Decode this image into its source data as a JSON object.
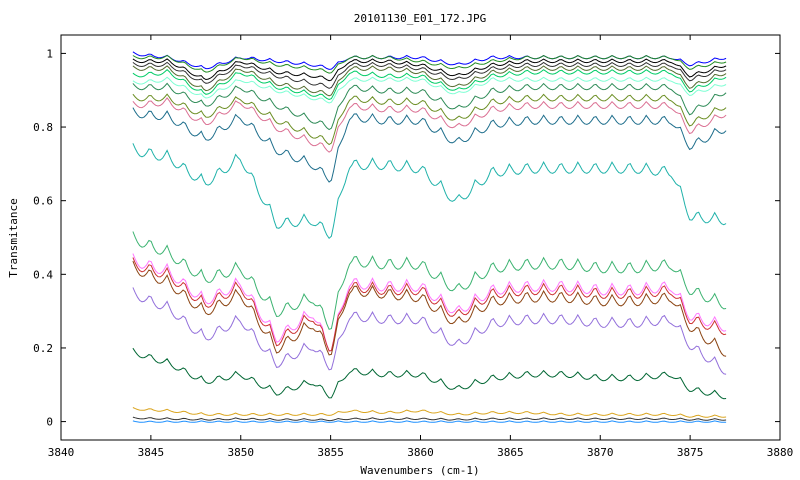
{
  "chart_data": {
    "type": "line",
    "title": "20101130_E01_172.JPG",
    "xlabel": "Wavenumbers (cm-1)",
    "ylabel": "Transmitance",
    "xlim": [
      3840,
      3880
    ],
    "ylim": [
      -0.05,
      1.05
    ],
    "x_ticks": [
      3840,
      3845,
      3850,
      3855,
      3860,
      3865,
      3870,
      3875,
      3880
    ],
    "y_ticks": [
      0,
      0.2,
      0.4,
      0.6,
      0.8,
      1
    ],
    "x_tick_labels": [
      "3840",
      "3845",
      "3850",
      "3855",
      "3860",
      "3865",
      "3870",
      "3875",
      "3880"
    ],
    "y_tick_labels": [
      "0",
      "0.2",
      "0.4",
      "0.6",
      "0.8",
      "1"
    ],
    "grid": false,
    "legend": "none",
    "x_range_data": [
      3844,
      3877
    ],
    "lines_at_x": [
      3844,
      3846,
      3848,
      3850,
      3852,
      3854,
      3855,
      3856,
      3858,
      3860,
      3862,
      3864,
      3866,
      3868,
      3870,
      3872,
      3874,
      3875,
      3877
    ],
    "series": [
      {
        "color": "#0000ff",
        "values": [
          1.0,
          0.99,
          0.96,
          0.99,
          0.98,
          0.97,
          0.96,
          0.99,
          0.99,
          0.99,
          0.97,
          0.99,
          0.99,
          0.99,
          0.99,
          0.99,
          0.99,
          0.97,
          0.99
        ]
      },
      {
        "color": "#228b22",
        "values": [
          0.99,
          0.99,
          0.95,
          0.99,
          0.97,
          0.96,
          0.95,
          0.99,
          0.99,
          0.98,
          0.96,
          0.98,
          0.99,
          0.99,
          0.99,
          0.99,
          0.99,
          0.96,
          0.98
        ]
      },
      {
        "color": "#000000",
        "values": [
          0.98,
          0.98,
          0.93,
          0.98,
          0.95,
          0.94,
          0.93,
          0.98,
          0.98,
          0.97,
          0.94,
          0.97,
          0.98,
          0.98,
          0.98,
          0.98,
          0.98,
          0.94,
          0.97
        ]
      },
      {
        "color": "#333333",
        "values": [
          0.97,
          0.97,
          0.92,
          0.97,
          0.94,
          0.92,
          0.91,
          0.97,
          0.97,
          0.96,
          0.93,
          0.96,
          0.97,
          0.97,
          0.97,
          0.97,
          0.97,
          0.93,
          0.96
        ]
      },
      {
        "color": "#556b2f",
        "values": [
          0.96,
          0.96,
          0.9,
          0.96,
          0.92,
          0.9,
          0.89,
          0.96,
          0.96,
          0.95,
          0.91,
          0.95,
          0.96,
          0.96,
          0.96,
          0.96,
          0.96,
          0.91,
          0.95
        ]
      },
      {
        "color": "#00cc66",
        "values": [
          0.94,
          0.95,
          0.89,
          0.95,
          0.91,
          0.89,
          0.88,
          0.95,
          0.94,
          0.94,
          0.9,
          0.94,
          0.95,
          0.95,
          0.95,
          0.95,
          0.95,
          0.9,
          0.94
        ]
      },
      {
        "color": "#7fffd4",
        "values": [
          0.92,
          0.93,
          0.88,
          0.93,
          0.9,
          0.88,
          0.87,
          0.93,
          0.93,
          0.93,
          0.89,
          0.93,
          0.93,
          0.93,
          0.93,
          0.93,
          0.93,
          0.89,
          0.92
        ]
      },
      {
        "color": "#2e8b57",
        "values": [
          0.91,
          0.91,
          0.86,
          0.91,
          0.86,
          0.82,
          0.8,
          0.91,
          0.9,
          0.9,
          0.85,
          0.9,
          0.91,
          0.91,
          0.91,
          0.91,
          0.91,
          0.84,
          0.9
        ]
      },
      {
        "color": "#6b8e23",
        "values": [
          0.88,
          0.88,
          0.83,
          0.88,
          0.82,
          0.78,
          0.76,
          0.88,
          0.87,
          0.87,
          0.82,
          0.87,
          0.88,
          0.88,
          0.88,
          0.88,
          0.88,
          0.81,
          0.86
        ]
      },
      {
        "color": "#db7093",
        "values": [
          0.86,
          0.87,
          0.81,
          0.87,
          0.8,
          0.76,
          0.74,
          0.86,
          0.85,
          0.85,
          0.8,
          0.85,
          0.86,
          0.86,
          0.86,
          0.86,
          0.86,
          0.79,
          0.84
        ]
      },
      {
        "color": "#1e6e8c",
        "values": [
          0.84,
          0.83,
          0.77,
          0.83,
          0.74,
          0.7,
          0.66,
          0.83,
          0.82,
          0.82,
          0.76,
          0.81,
          0.82,
          0.82,
          0.82,
          0.82,
          0.82,
          0.75,
          0.8
        ]
      },
      {
        "color": "#20b2aa",
        "values": [
          0.74,
          0.72,
          0.65,
          0.72,
          0.54,
          0.55,
          0.51,
          0.7,
          0.7,
          0.69,
          0.6,
          0.68,
          0.69,
          0.69,
          0.69,
          0.69,
          0.68,
          0.56,
          0.55
        ]
      },
      {
        "color": "#3cb371",
        "values": [
          0.5,
          0.46,
          0.39,
          0.42,
          0.3,
          0.34,
          0.26,
          0.44,
          0.43,
          0.43,
          0.36,
          0.42,
          0.43,
          0.43,
          0.42,
          0.42,
          0.43,
          0.36,
          0.32
        ]
      },
      {
        "color": "#ff77ff",
        "values": [
          0.44,
          0.41,
          0.33,
          0.38,
          0.23,
          0.3,
          0.2,
          0.38,
          0.37,
          0.37,
          0.3,
          0.36,
          0.37,
          0.37,
          0.36,
          0.36,
          0.37,
          0.29,
          0.26
        ]
      },
      {
        "color": "#cc3333",
        "values": [
          0.43,
          0.4,
          0.32,
          0.37,
          0.22,
          0.29,
          0.2,
          0.37,
          0.36,
          0.36,
          0.29,
          0.35,
          0.36,
          0.36,
          0.35,
          0.35,
          0.36,
          0.28,
          0.25
        ]
      },
      {
        "color": "#8b4513",
        "values": [
          0.42,
          0.38,
          0.3,
          0.35,
          0.2,
          0.27,
          0.19,
          0.36,
          0.35,
          0.34,
          0.27,
          0.33,
          0.34,
          0.34,
          0.33,
          0.33,
          0.34,
          0.26,
          0.19
        ]
      },
      {
        "color": "#9370db",
        "values": [
          0.35,
          0.31,
          0.23,
          0.28,
          0.16,
          0.21,
          0.15,
          0.29,
          0.28,
          0.28,
          0.21,
          0.27,
          0.28,
          0.28,
          0.27,
          0.27,
          0.28,
          0.21,
          0.14
        ]
      },
      {
        "color": "#006633",
        "values": [
          0.19,
          0.16,
          0.11,
          0.13,
          0.08,
          0.11,
          0.07,
          0.14,
          0.13,
          0.13,
          0.09,
          0.12,
          0.13,
          0.13,
          0.12,
          0.12,
          0.13,
          0.09,
          0.07
        ]
      },
      {
        "color": "#daa520",
        "values": [
          0.035,
          0.03,
          0.02,
          0.02,
          0.02,
          0.02,
          0.02,
          0.03,
          0.025,
          0.03,
          0.02,
          0.025,
          0.025,
          0.02,
          0.02,
          0.02,
          0.02,
          0.015,
          0.015
        ]
      },
      {
        "color": "#333333",
        "values": [
          0.01,
          0.008,
          0.006,
          0.008,
          0.006,
          0.006,
          0.005,
          0.008,
          0.008,
          0.008,
          0.006,
          0.008,
          0.008,
          0.008,
          0.008,
          0.008,
          0.008,
          0.006,
          0.006
        ]
      },
      {
        "color": "#1e90ff",
        "values": [
          0.0,
          0.0,
          0.0,
          0.0,
          0.0,
          0.0,
          0.0,
          0.0,
          0.0,
          0.0,
          0.0,
          0.0,
          0.0,
          0.0,
          0.0,
          0.0,
          0.0,
          0.0,
          0.0
        ]
      }
    ]
  }
}
